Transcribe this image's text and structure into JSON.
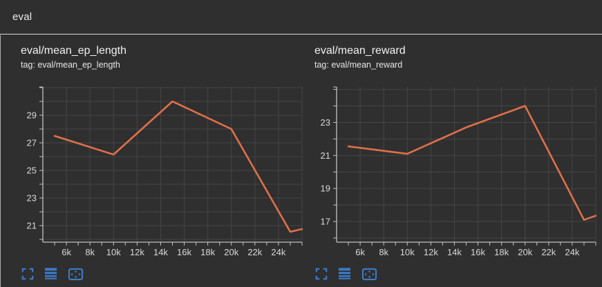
{
  "header": {
    "title": "eval"
  },
  "colors": {
    "background": "#2f2f2f",
    "divider": "#d8d8d8",
    "grid": "#464646",
    "axis": "#c2c2c2",
    "tick_label": "#d9d9d9",
    "title_text": "#f2f2f2",
    "line": "#e0704a",
    "icon": "#3b7ccc"
  },
  "toolbar": {
    "icons": [
      {
        "name": "expand-icon"
      },
      {
        "name": "log-scale-icon"
      },
      {
        "name": "fit-domain-icon"
      }
    ]
  },
  "chart_data": [
    {
      "type": "line",
      "title": "eval/mean_ep_length",
      "subtitle": "tag: eval/mean_ep_length",
      "x": [
        5000,
        10000,
        15000,
        20000,
        25000,
        26000
      ],
      "values": [
        27.5,
        26.15,
        30.0,
        28.0,
        20.55,
        20.75
      ],
      "xlim": [
        4000,
        26000
      ],
      "ylim": [
        19.8,
        31.05
      ],
      "x_tick_values": [
        6000,
        8000,
        10000,
        12000,
        14000,
        16000,
        18000,
        20000,
        22000,
        24000
      ],
      "x_tick_labels": [
        "6k",
        "8k",
        "10k",
        "12k",
        "14k",
        "16k",
        "18k",
        "20k",
        "22k",
        "24k"
      ],
      "x_minor_tick_step": 1000,
      "x_grid_step": 2000,
      "y_tick_values": [
        21,
        23,
        25,
        27,
        29
      ],
      "y_grid_step": 1,
      "grid": true,
      "legend": "none"
    },
    {
      "type": "line",
      "title": "eval/mean_reward",
      "subtitle": "tag: eval/mean_reward",
      "x": [
        5000,
        10000,
        15000,
        20000,
        25000,
        26000
      ],
      "values": [
        21.55,
        21.1,
        22.7,
        24.0,
        17.1,
        17.35
      ],
      "xlim": [
        4000,
        26000
      ],
      "ylim": [
        15.75,
        25.15
      ],
      "x_tick_values": [
        6000,
        8000,
        10000,
        12000,
        14000,
        16000,
        18000,
        20000,
        22000,
        24000
      ],
      "x_tick_labels": [
        "6k",
        "8k",
        "10k",
        "12k",
        "14k",
        "16k",
        "18k",
        "20k",
        "22k",
        "24k"
      ],
      "x_minor_tick_step": 1000,
      "x_grid_step": 2000,
      "y_tick_values": [
        17,
        19,
        21,
        23
      ],
      "y_grid_step": 1,
      "grid": true,
      "legend": "none"
    }
  ]
}
